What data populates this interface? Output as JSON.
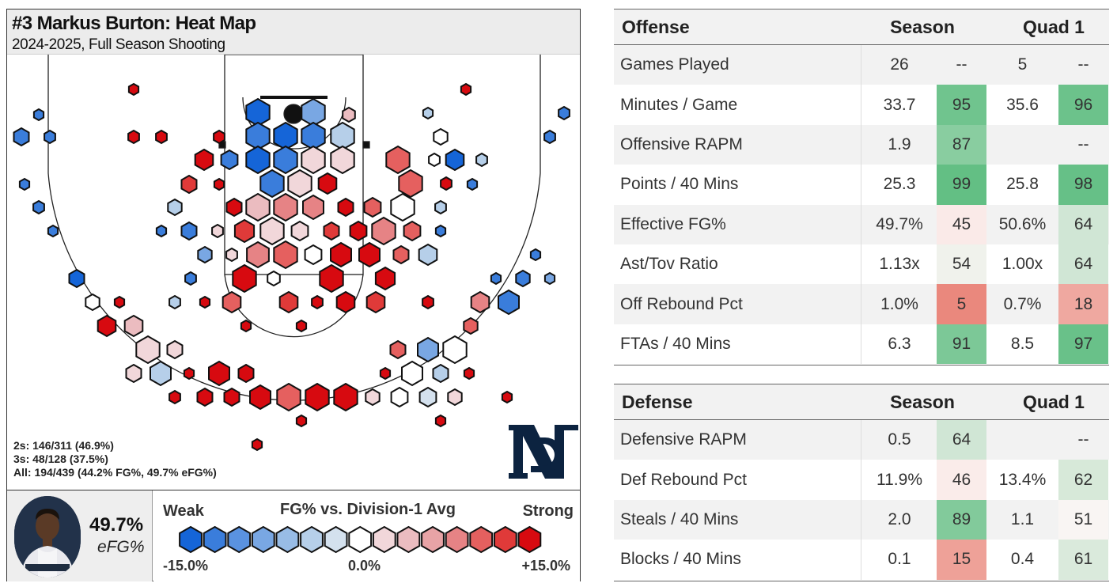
{
  "heatmap": {
    "title": "#3 Markus Burton: Heat Map",
    "subtitle": "2024-2025, Full Season Shooting",
    "stats": [
      "2s: 146/311 (46.9%)",
      "3s: 48/128 (37.5%)",
      "All: 194/439 (44.2% FG%, 49.7% eFG%)"
    ],
    "efg_value": "49.7%",
    "efg_label": "eFG%",
    "legend": {
      "weak": "Weak",
      "title": "FG% vs. Division-1 Avg",
      "strong": "Strong",
      "min": "-15.0%",
      "mid": "0.0%",
      "max": "+15.0%",
      "colors": [
        "#1565d8",
        "#3a7ddb",
        "#5a92e0",
        "#79a7e3",
        "#98bce6",
        "#b6cfe9",
        "#d4e1ee",
        "#ffffff",
        "#f1d7da",
        "#ebbcc0",
        "#e8a3a6",
        "#e68385",
        "#e5605f",
        "#e03a39",
        "#d70a10"
      ]
    },
    "logo_text": "ND",
    "colors": {
      "strong_blue": "#1565d8",
      "neutral": "#ffffff",
      "strong_red": "#d70a10"
    }
  },
  "offense": {
    "header": {
      "name": "Offense",
      "season": "Season",
      "q1": "Quad 1"
    },
    "rows": [
      {
        "name": "Games Played",
        "sv": "26",
        "sp": "--",
        "qv": "5",
        "qp": "--"
      },
      {
        "name": "Minutes / Game",
        "sv": "33.7",
        "sp": "95",
        "qv": "35.6",
        "qp": "96"
      },
      {
        "name": "Offensive RAPM",
        "sv": "1.9",
        "sp": "87",
        "qv": "",
        "qp": "--"
      },
      {
        "name": "Points / 40 Mins",
        "sv": "25.3",
        "sp": "99",
        "qv": "25.8",
        "qp": "98"
      },
      {
        "name": "Effective FG%",
        "sv": "49.7%",
        "sp": "45",
        "qv": "50.6%",
        "qp": "64"
      },
      {
        "name": "Ast/Tov Ratio",
        "sv": "1.13x",
        "sp": "54",
        "qv": "1.00x",
        "qp": "64"
      },
      {
        "name": "Off Rebound Pct",
        "sv": "1.0%",
        "sp": "5",
        "qv": "0.7%",
        "qp": "18"
      },
      {
        "name": "FTAs / 40 Mins",
        "sv": "6.3",
        "sp": "91",
        "qv": "8.5",
        "qp": "97"
      }
    ]
  },
  "defense": {
    "header": {
      "name": "Defense",
      "season": "Season",
      "q1": "Quad 1"
    },
    "rows": [
      {
        "name": "Defensive RAPM",
        "sv": "0.5",
        "sp": "64",
        "qv": "",
        "qp": "--"
      },
      {
        "name": "Def Rebound Pct",
        "sv": "11.9%",
        "sp": "46",
        "qv": "13.4%",
        "qp": "62"
      },
      {
        "name": "Steals / 40 Mins",
        "sv": "2.0",
        "sp": "89",
        "qv": "1.1",
        "qp": "51"
      },
      {
        "name": "Blocks / 40 Mins",
        "sv": "0.1",
        "sp": "15",
        "qv": "0.4",
        "qp": "61"
      }
    ]
  },
  "chart_data": {
    "type": "heatmap",
    "title": "#3 Markus Burton: Heat Map",
    "subtitle": "2024-2025, Full Season Shooting",
    "legend_title": "FG% vs. Division-1 Avg",
    "color_scale": {
      "min": -15.0,
      "max": 15.0,
      "unit": "%"
    },
    "shooting": [
      {
        "label": "2s",
        "made": 146,
        "attempts": 311,
        "pct": 46.9
      },
      {
        "label": "3s",
        "made": 48,
        "attempts": 128,
        "pct": 37.5
      },
      {
        "label": "All",
        "made": 194,
        "attempts": 439,
        "fg_pct": 44.2,
        "efg_pct": 49.7
      }
    ]
  }
}
